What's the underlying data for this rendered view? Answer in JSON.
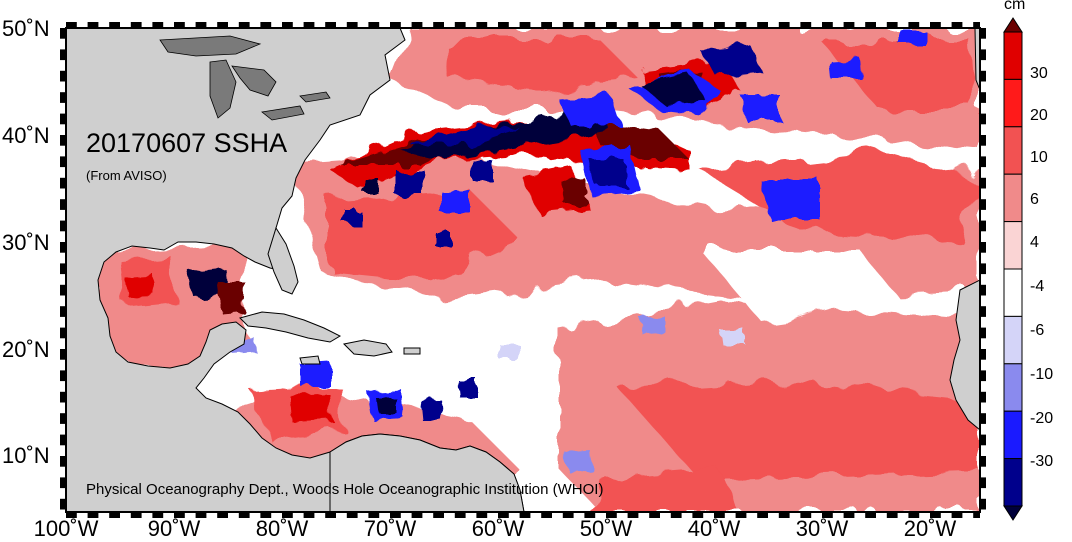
{
  "map": {
    "title": "20170607 SSHA",
    "source": "(From AVISO)",
    "credit": "Physical Oceanography Dept., Woods Hole Oceanographic Institution (WHOI)"
  },
  "axes": {
    "lat_labels": [
      "50˚N",
      "40˚N",
      "30˚N",
      "20˚N",
      "10˚N"
    ],
    "lon_labels": [
      "100˚W",
      "90˚W",
      "80˚W",
      "70˚W",
      "60˚W",
      "50˚W",
      "40˚W",
      "30˚W",
      "20˚W"
    ]
  },
  "colorbar": {
    "unit": "cm",
    "labels": [
      "30",
      "20",
      "10",
      "6",
      "4",
      "-4",
      "-6",
      "-10",
      "-20",
      "-30"
    ],
    "colors": [
      "#6b0000",
      "#e00000",
      "#ff1a1a",
      "#f25252",
      "#f08a8a",
      "#fad4d4",
      "#ffffff",
      "#d4d4f8",
      "#8a8aee",
      "#1a1aff",
      "#00008c",
      "#00003a"
    ]
  },
  "colors": {
    "land": "#cfcfcf",
    "lakes": "#7a7a7a"
  }
}
